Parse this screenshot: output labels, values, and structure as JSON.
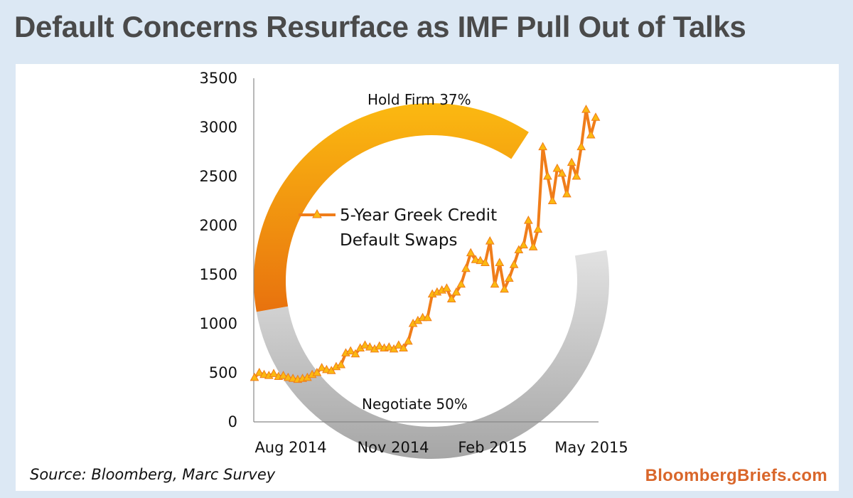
{
  "header": {
    "title": "Default Concerns Resurface as IMF Pull Out of Talks"
  },
  "footer": {
    "source": "Source:  Bloomberg, Marc Survey",
    "brand": "BloombergBriefs.com"
  },
  "colors": {
    "series": "#f07d1a",
    "ring_firm_top": "#fbb911",
    "ring_firm_bottom": "#e8720e",
    "ring_negotiate": "#b8b8b8",
    "ring_negotiate_light": "#e2e2e2",
    "title": "#4a4a4a",
    "brand": "#d9662a",
    "background": "#dce8f4"
  },
  "chart_data": {
    "type": "line",
    "title": "",
    "xlabel": "",
    "ylabel": "",
    "ylim": [
      0,
      3500
    ],
    "yticks": [
      "3500",
      "3000",
      "2500",
      "2000",
      "1500",
      "1000",
      "500",
      "0"
    ],
    "xticks": [
      "Aug 2014",
      "Nov 2014",
      "Feb 2015",
      "May 2015"
    ],
    "series": [
      {
        "name_line1": "5-Year Greek Credit",
        "name_line2": "Default Swaps",
        "values": [
          450,
          500,
          480,
          470,
          490,
          460,
          470,
          450,
          440,
          430,
          440,
          450,
          480,
          500,
          550,
          530,
          520,
          560,
          580,
          700,
          720,
          690,
          750,
          780,
          760,
          740,
          770,
          750,
          760,
          740,
          780,
          750,
          820,
          1000,
          1030,
          1060,
          1060,
          1300,
          1320,
          1340,
          1360,
          1250,
          1320,
          1400,
          1560,
          1720,
          1650,
          1640,
          1620,
          1840,
          1400,
          1620,
          1350,
          1460,
          1600,
          1750,
          1800,
          2050,
          1780,
          1960,
          2800,
          2500,
          2250,
          2580,
          2530,
          2320,
          2640,
          2500,
          2800,
          3180,
          2920,
          3100
        ]
      }
    ],
    "annotations": {
      "hold_firm": "Hold Firm   37%",
      "negotiate": "Negotiate   50%"
    },
    "survey": {
      "hold_firm_pct": 37,
      "negotiate_pct": 50
    }
  }
}
